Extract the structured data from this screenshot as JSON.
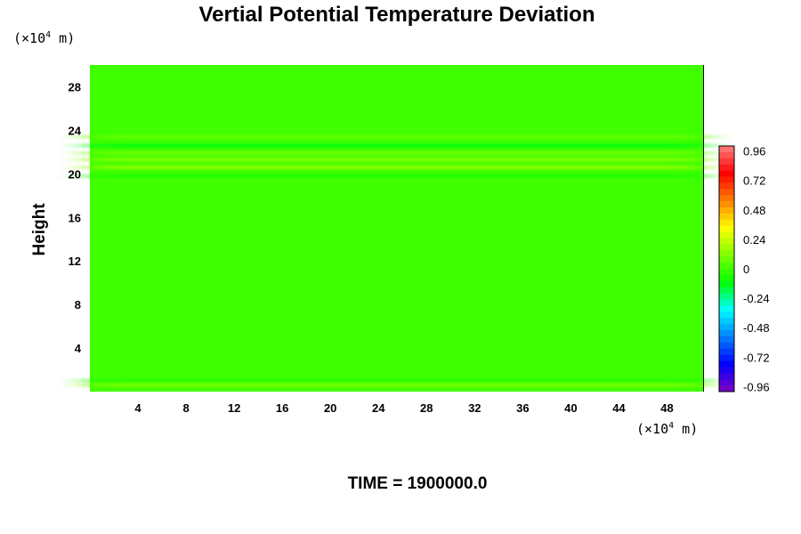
{
  "chart_data": {
    "type": "heatmap",
    "title": "Vertial Potential Temperature Deviation",
    "xlabel": "",
    "ylabel": "Height",
    "x_unit": {
      "prefix": "(×10",
      "exp": "4",
      "suffix": " m)"
    },
    "y_unit": {
      "prefix": "(×10",
      "exp": "4",
      "suffix": " m)"
    },
    "xlim": [
      0,
      51
    ],
    "ylim": [
      0,
      30
    ],
    "xticks": [
      4,
      8,
      12,
      16,
      20,
      24,
      28,
      32,
      36,
      40,
      44,
      48
    ],
    "yticks": [
      4,
      8,
      12,
      16,
      20,
      24,
      28
    ],
    "colorbar": {
      "min": -1.0,
      "max": 1.0,
      "ticks": [
        0.96,
        0.72,
        0.48,
        0.24,
        0,
        -0.24,
        -0.48,
        -0.72,
        -0.96
      ],
      "colors": [
        "#ff8080",
        "#ff0000",
        "#ff8000",
        "#ffff00",
        "#80ff00",
        "#00ff00",
        "#00ffff",
        "#0080ff",
        "#0000ff",
        "#8000c0"
      ]
    },
    "field_background_value": 0.0,
    "bands": [
      {
        "y": 0.6,
        "value": 0.1
      },
      {
        "y": 1.0,
        "value": -0.05
      },
      {
        "y": 19.8,
        "value": -0.06
      },
      {
        "y": 20.6,
        "value": 0.14
      },
      {
        "y": 21.3,
        "value": 0.12
      },
      {
        "y": 21.9,
        "value": 0.08
      },
      {
        "y": 22.6,
        "value": -0.12
      },
      {
        "y": 23.4,
        "value": 0.06
      }
    ]
  },
  "footer": "TIME = 1900000.0"
}
